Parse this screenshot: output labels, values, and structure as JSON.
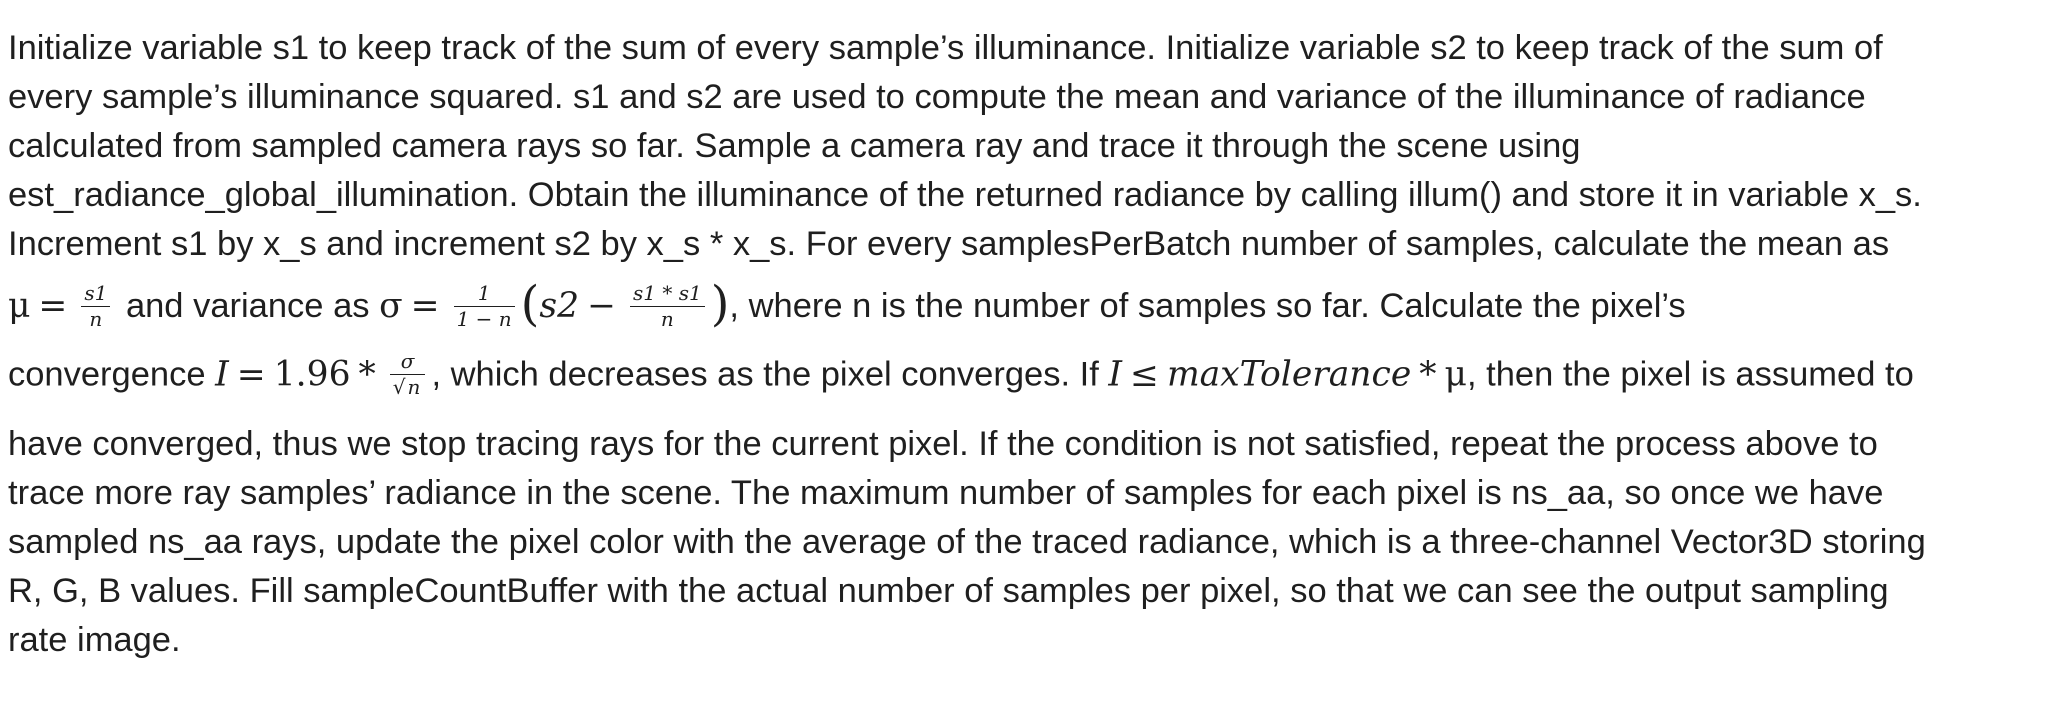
{
  "paragraph": {
    "line1": "Initialize variable s1 to keep track of the sum of every sample’s illuminance. Initialize variable s2 to keep track of the sum of",
    "line2": "every sample’s illuminance squared. s1 and s2 are used to compute the mean and variance of the illuminance of radiance",
    "line3": "calculated from sampled camera rays so far. Sample a camera ray and trace it through the scene using",
    "line4": "est_radiance_global_illumination. Obtain the illuminance of the returned radiance by calling illum() and store it in variable x_s.",
    "line5": "Increment s1 by x_s and increment s2 by x_s * x_s. For every samplesPerBatch number of samples, calculate the mean as",
    "line6_text_a": "and variance as",
    "line6_text_b": ", where n is the number of samples so far. Calculate the pixel’s",
    "line7_text_a": "convergence",
    "line7_text_b": ", which decreases as the pixel converges. If",
    "line7_text_c": ", then the pixel is assumed to",
    "line8": "have converged, thus we stop tracing rays for the current pixel. If the condition is not satisfied, repeat the process above to",
    "line9": "trace more ray samples’ radiance in the scene. The maximum number of samples for each pixel is ns_aa, so once we have",
    "line10": "sampled ns_aa rays, update the pixel color with the average of the traced radiance, which is a three-channel Vector3D storing",
    "line11": "R, G, B values. Fill sampleCountBuffer with the actual number of samples per pixel, so that we can see the output sampling",
    "line12": "rate image."
  },
  "math": {
    "mu": "μ",
    "sigma": "σ",
    "eq": "=",
    "minus": "−",
    "times": "*",
    "leq": "≤",
    "mean_num": "s1",
    "mean_den": "n",
    "var_coef_num": "1",
    "var_coef_den": "1 − n",
    "var_s2": "s2",
    "var_inner_num": "s1 * s1",
    "var_inner_den": "n",
    "conv_I": "I",
    "conv_const": "1.96",
    "conv_den_n": "n",
    "tol_I": "I",
    "tol_name": "maxTolerance"
  }
}
